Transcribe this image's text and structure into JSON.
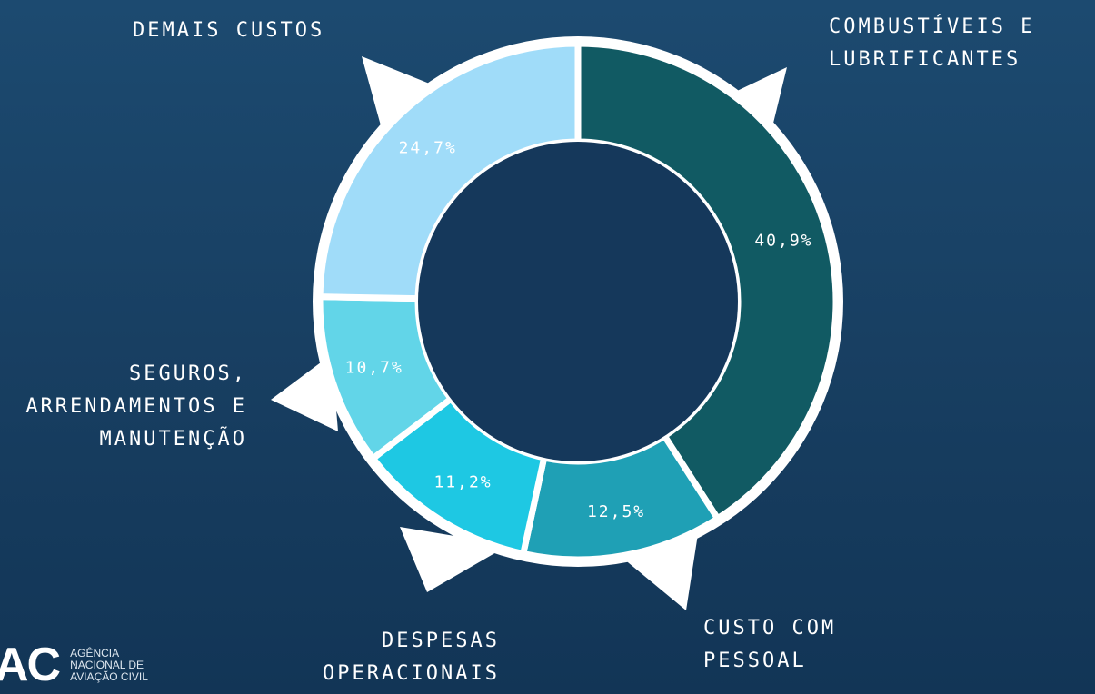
{
  "chart_data": {
    "type": "donut",
    "categories": [
      "COMBUSTÍVEIS E LUBRIFICANTES",
      "CUSTO COM PESSOAL",
      "DESPESAS OPERACIONAIS",
      "SEGUROS, ARRENDAMENTOS E MANUTENÇÃO",
      "DEMAIS CUSTOS"
    ],
    "values": [
      40.9,
      12.5,
      11.2,
      10.7,
      24.7
    ],
    "value_labels": [
      "40,9%",
      "12,5%",
      "11,2%",
      "10,7%",
      "24,7%"
    ],
    "colors": [
      "#115a63",
      "#1fa0b5",
      "#1ec8e3",
      "#62d5e8",
      "#a0dcf9"
    ]
  },
  "logo": {
    "mark": "AC",
    "name": "AGÊNCIA NACIONAL DE AVIAÇÃO CIVIL"
  }
}
